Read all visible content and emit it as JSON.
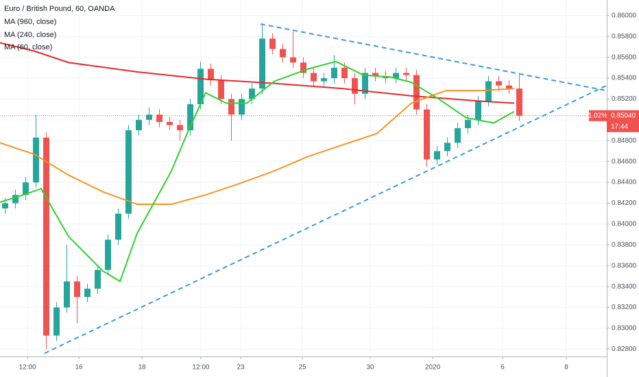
{
  "chart_data": {
    "type": "candlestick",
    "title": "Euro / British Pound, 60, OANDA",
    "up_color": "#26a69a",
    "down_color": "#ef5350",
    "grid": true,
    "x": [
      0,
      1,
      2,
      3,
      4,
      5,
      6,
      7,
      8,
      9,
      10,
      11,
      12,
      13,
      14,
      15,
      16,
      17,
      18,
      19,
      20,
      21,
      22,
      23,
      24,
      25,
      26,
      27,
      28,
      29,
      30,
      31,
      32,
      33,
      34,
      35,
      36,
      37,
      38,
      39,
      40,
      41,
      42,
      43,
      44,
      45,
      46,
      47,
      48,
      49,
      50
    ],
    "open": [
      0.8415,
      0.842,
      0.8428,
      0.844,
      0.8483,
      0.8293,
      0.832,
      0.8345,
      0.833,
      0.8338,
      0.8356,
      0.8385,
      0.841,
      0.849,
      0.85,
      0.8505,
      0.8498,
      0.8495,
      0.849,
      0.8515,
      0.8549,
      0.8538,
      0.852,
      0.8505,
      0.852,
      0.853,
      0.8578,
      0.8568,
      0.856,
      0.8555,
      0.8545,
      0.8537,
      0.854,
      0.855,
      0.854,
      0.8525,
      0.8545,
      0.8542,
      0.854,
      0.8545,
      0.8543,
      0.851,
      0.8462,
      0.847,
      0.8478,
      0.8492,
      0.85,
      0.8518,
      0.8537,
      0.8533,
      0.853
    ],
    "high": [
      0.8425,
      0.8433,
      0.8445,
      0.8505,
      0.8488,
      0.8325,
      0.838,
      0.835,
      0.8343,
      0.8361,
      0.839,
      0.8415,
      0.8495,
      0.8505,
      0.8512,
      0.851,
      0.8503,
      0.85,
      0.852,
      0.8556,
      0.8554,
      0.8543,
      0.8525,
      0.8525,
      0.8535,
      0.8592,
      0.8583,
      0.8573,
      0.8585,
      0.856,
      0.855,
      0.8545,
      0.8562,
      0.8555,
      0.8545,
      0.855,
      0.855,
      0.8547,
      0.855,
      0.855,
      0.8548,
      0.8515,
      0.8475,
      0.8483,
      0.8497,
      0.8505,
      0.8523,
      0.8542,
      0.8542,
      0.8538,
      0.8545
    ],
    "low": [
      0.841,
      0.8415,
      0.8423,
      0.8435,
      0.828,
      0.8288,
      0.8315,
      0.8305,
      0.8325,
      0.8333,
      0.8351,
      0.838,
      0.8405,
      0.8485,
      0.8495,
      0.8493,
      0.849,
      0.848,
      0.8485,
      0.851,
      0.8533,
      0.8515,
      0.848,
      0.85,
      0.8515,
      0.8525,
      0.8563,
      0.8555,
      0.855,
      0.854,
      0.8532,
      0.8532,
      0.8535,
      0.8535,
      0.8515,
      0.852,
      0.8537,
      0.8535,
      0.8535,
      0.8538,
      0.8505,
      0.8455,
      0.8457,
      0.8465,
      0.8473,
      0.8487,
      0.8495,
      0.8513,
      0.8528,
      0.8525,
      0.8499
    ],
    "close": [
      0.842,
      0.8428,
      0.844,
      0.8483,
      0.8293,
      0.832,
      0.8345,
      0.833,
      0.8338,
      0.8356,
      0.8385,
      0.841,
      0.849,
      0.85,
      0.8505,
      0.8498,
      0.8495,
      0.849,
      0.8515,
      0.8549,
      0.8538,
      0.852,
      0.8505,
      0.852,
      0.853,
      0.8578,
      0.8568,
      0.856,
      0.8555,
      0.8545,
      0.8537,
      0.854,
      0.855,
      0.854,
      0.8525,
      0.8545,
      0.8542,
      0.854,
      0.8545,
      0.8543,
      0.851,
      0.8462,
      0.847,
      0.8478,
      0.8492,
      0.85,
      0.8518,
      0.8537,
      0.8533,
      0.853,
      0.8504
    ],
    "series": [
      {
        "name": "MA (960, close)",
        "color": "#e8262b",
        "x": [
          -0.5,
          2.83,
          6.17,
          12.83,
          19.5,
          26.17,
          32.83,
          39.5,
          46.17,
          49.5
        ],
        "values": [
          0.8574,
          0.8566,
          0.8555,
          0.8546,
          0.8539,
          0.8535,
          0.853,
          0.8523,
          0.8518,
          0.8516
        ]
      },
      {
        "name": "MA (240, close)",
        "color": "#f7941d",
        "x": [
          -0.5,
          2.83,
          6.17,
          9.5,
          12.83,
          16.17,
          19.5,
          22.83,
          26.17,
          29.5,
          32.83,
          36.17,
          39.5,
          42.83,
          46.17,
          49.5
        ],
        "values": [
          0.8478,
          0.8467,
          0.8447,
          0.8431,
          0.8419,
          0.8419,
          0.8428,
          0.8439,
          0.8451,
          0.8465,
          0.8476,
          0.8487,
          0.8516,
          0.8528,
          0.8528,
          0.853
        ]
      },
      {
        "name": "MA (60, close)",
        "color": "#2bd32b",
        "x": [
          -0.5,
          1.5,
          3.5,
          6.17,
          9.5,
          11.17,
          12.83,
          16.17,
          17.83,
          19.5,
          21.5,
          23.5,
          26.17,
          29.5,
          32.17,
          34.83,
          37.5,
          39.5,
          42.17,
          44.83,
          47.5,
          49.5
        ],
        "values": [
          0.8421,
          0.8427,
          0.8434,
          0.8388,
          0.8355,
          0.8345,
          0.8391,
          0.8451,
          0.849,
          0.8526,
          0.8516,
          0.8516,
          0.8537,
          0.8549,
          0.8556,
          0.8543,
          0.8541,
          0.8536,
          0.852,
          0.8502,
          0.8497,
          0.8508
        ]
      }
    ],
    "trendlines": [
      {
        "color": "#3a9ad9",
        "x": [
          24.83,
          58.5
        ],
        "values": [
          0.8592,
          0.8528
        ]
      },
      {
        "color": "#3a9ad9",
        "x": [
          3.83,
          58.5
        ],
        "values": [
          0.8276,
          0.8533
        ]
      }
    ],
    "current_price": 0.8504,
    "current_price_label": "0.85040",
    "change_label": "1.02%",
    "countdown": "17:44",
    "xlim": [
      -0.5,
      58.5
    ],
    "ylim": [
      0.8273,
      0.8615
    ],
    "xticks": [
      {
        "value": 2.17,
        "label": "12:00"
      },
      {
        "value": 7.17,
        "label": "16"
      },
      {
        "value": 13.3,
        "label": "18"
      },
      {
        "value": 19.03,
        "label": "12:00"
      },
      {
        "value": 22.9,
        "label": "23"
      },
      {
        "value": 28.9,
        "label": "25"
      },
      {
        "value": 35.5,
        "label": "30"
      },
      {
        "value": 41.57,
        "label": "2020"
      },
      {
        "value": 48.37,
        "label": "6"
      },
      {
        "value": 54.57,
        "label": "8"
      }
    ],
    "yticks": [
      {
        "value": 0.828,
        "label": "0.82800"
      },
      {
        "value": 0.83,
        "label": "0.83000"
      },
      {
        "value": 0.832,
        "label": "0.83200"
      },
      {
        "value": 0.834,
        "label": "0.83400"
      },
      {
        "value": 0.836,
        "label": "0.83600"
      },
      {
        "value": 0.838,
        "label": "0.83800"
      },
      {
        "value": 0.84,
        "label": "0.84000"
      },
      {
        "value": 0.842,
        "label": "0.84200"
      },
      {
        "value": 0.844,
        "label": "0.84400"
      },
      {
        "value": 0.846,
        "label": "0.84600"
      },
      {
        "value": 0.848,
        "label": "0.84800"
      },
      {
        "value": 0.85,
        "label": "0.85000"
      },
      {
        "value": 0.852,
        "label": "0.85200"
      },
      {
        "value": 0.854,
        "label": "0.85400"
      },
      {
        "value": 0.856,
        "label": "0.85600"
      },
      {
        "value": 0.858,
        "label": "0.85800"
      },
      {
        "value": 0.86,
        "label": "0.86000"
      }
    ]
  }
}
